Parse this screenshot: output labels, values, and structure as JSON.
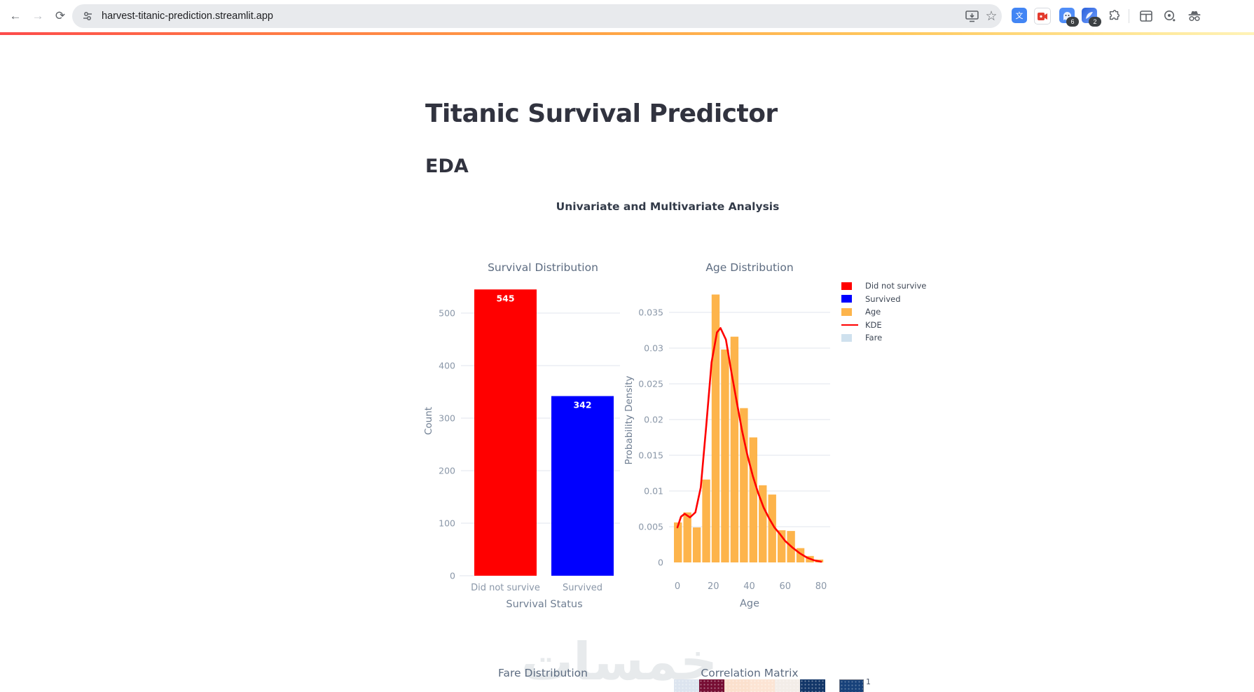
{
  "browser": {
    "url": "harvest-titanic-prediction.streamlit.app",
    "badge_pink_extension": "6",
    "badge_blue_extension": "2"
  },
  "page": {
    "title": "Titanic Survival Predictor",
    "section_heading": "EDA",
    "figure_suptitle": "Univariate and Multivariate Analysis",
    "watermark_text": "خمسات"
  },
  "chart_data": [
    {
      "type": "bar",
      "title": "Survival Distribution",
      "categories": [
        "Did not survive",
        "Survived"
      ],
      "values": [
        545,
        342
      ],
      "bar_labels": [
        "545",
        "342"
      ],
      "colors": [
        "#ff0000",
        "#0000ff"
      ],
      "xlabel": "Survival Status",
      "ylabel": "Count",
      "yticks": [
        0,
        100,
        200,
        300,
        400,
        500
      ],
      "ylim": [
        0,
        560
      ],
      "grid": "horizontal"
    },
    {
      "type": "histogram",
      "title": "Age Distribution",
      "xlabel": "Age",
      "ylabel": "Probability Density",
      "xticks": [
        0,
        20,
        40,
        60,
        80
      ],
      "yticks": [
        0,
        0.005,
        0.01,
        0.015,
        0.02,
        0.025,
        0.03,
        0.035
      ],
      "ylim": [
        0,
        0.0395
      ],
      "xlim": [
        0,
        80
      ],
      "bin_width": 5,
      "bar_color": "#fdb44b",
      "values": [
        0.0056,
        0.007,
        0.0049,
        0.0116,
        0.0375,
        0.0298,
        0.0316,
        0.0216,
        0.0175,
        0.0108,
        0.0095,
        0.0045,
        0.0044,
        0.002,
        0.0009,
        0.0004
      ],
      "kde": {
        "color": "#ff0000",
        "points": [
          [
            0,
            0.0049
          ],
          [
            2,
            0.0064
          ],
          [
            4,
            0.0068
          ],
          [
            7,
            0.0063
          ],
          [
            10,
            0.007
          ],
          [
            13,
            0.0105
          ],
          [
            16,
            0.019
          ],
          [
            19,
            0.028
          ],
          [
            22,
            0.0322
          ],
          [
            24,
            0.0328
          ],
          [
            27,
            0.0312
          ],
          [
            30,
            0.0267
          ],
          [
            33,
            0.0225
          ],
          [
            36,
            0.0184
          ],
          [
            39,
            0.015
          ],
          [
            42,
            0.0121
          ],
          [
            45,
            0.0097
          ],
          [
            48,
            0.0077
          ],
          [
            51,
            0.0062
          ],
          [
            54,
            0.0049
          ],
          [
            57,
            0.004
          ],
          [
            60,
            0.003
          ],
          [
            64,
            0.0021
          ],
          [
            68,
            0.0013
          ],
          [
            72,
            0.0007
          ],
          [
            76,
            0.0003
          ],
          [
            80,
            0.0001
          ]
        ]
      },
      "legend": [
        {
          "label": "Did not survive",
          "color": "#ff0000",
          "kind": "patch"
        },
        {
          "label": "Survived",
          "color": "#0000ff",
          "kind": "patch"
        },
        {
          "label": "Age",
          "color": "#fdb44b",
          "kind": "patch"
        },
        {
          "label": "KDE",
          "color": "#ff0000",
          "kind": "line"
        },
        {
          "label": "Fare",
          "color": "#cfe1ee",
          "kind": "patch"
        }
      ],
      "legend_position": "upper right, outside plot"
    },
    {
      "type": "histogram",
      "title": "Fare Distribution"
    },
    {
      "type": "heatmap",
      "title": "Correlation Matrix",
      "visible_top_row_cell_colors": [
        "#dce4ef",
        "#760d33",
        "#fbe0cd",
        "#fce4d4",
        "#f3ede8",
        "#123668"
      ],
      "colorbar_top_color": "#17417a",
      "colorbar_top_label": "1"
    }
  ]
}
